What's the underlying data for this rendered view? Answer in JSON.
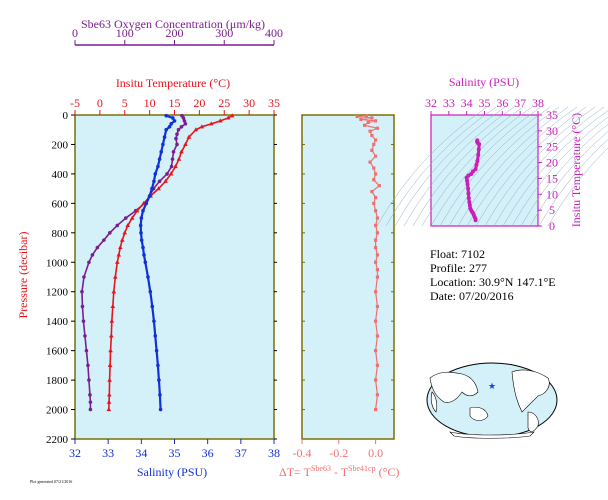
{
  "colors": {
    "oxygen": "#7a1f8f",
    "temperature": "#e8141c",
    "salinity": "#1030d8",
    "salinity_inset": "#c91fb8",
    "delta": "#f07070",
    "panel_bg": "#d4f0f8",
    "panel_frame": "#7a7000"
  },
  "chart_data": [
    {
      "type": "line",
      "panel": "profile",
      "yaxis": {
        "label": "Pressure (decibar)",
        "lim": [
          0,
          2200
        ],
        "ticks": [
          0,
          200,
          400,
          600,
          800,
          1000,
          1200,
          1400,
          1600,
          1800,
          2000,
          2200
        ],
        "reversed": true
      },
      "oxygen_axis": {
        "label": "Sbe63 Oxygen Concentration (μm/kg)",
        "lim": [
          0,
          400
        ],
        "ticks": [
          0,
          100,
          200,
          300,
          400
        ]
      },
      "temperature_axis": {
        "label": "Insitu Temperature (°C)",
        "lim": [
          -5,
          35
        ],
        "ticks": [
          -5,
          0,
          5,
          10,
          15,
          20,
          25,
          30,
          35
        ]
      },
      "salinity_axis": {
        "label": "Salinity (PSU)",
        "lim": [
          32,
          38
        ],
        "ticks": [
          32,
          33,
          34,
          35,
          36,
          37,
          38
        ]
      },
      "series": [
        {
          "key": "oxygen",
          "pressure": [
            5,
            20,
            40,
            60,
            80,
            100,
            130,
            160,
            200,
            250,
            300,
            350,
            400,
            450,
            500,
            550,
            600,
            650,
            700,
            750,
            800,
            850,
            900,
            950,
            1000,
            1100,
            1200,
            1300,
            1400,
            1500,
            1600,
            1700,
            1800,
            1900,
            1950,
            2000
          ],
          "values": [
            215,
            218,
            220,
            222,
            214,
            208,
            205,
            203,
            205,
            198,
            196,
            194,
            185,
            170,
            158,
            150,
            140,
            122,
            102,
            85,
            70,
            58,
            45,
            35,
            28,
            18,
            14,
            15,
            17,
            20,
            23,
            26,
            28,
            30,
            31,
            31
          ]
        },
        {
          "key": "temperature",
          "pressure": [
            5,
            20,
            40,
            60,
            80,
            100,
            150,
            200,
            250,
            300,
            350,
            400,
            450,
            500,
            550,
            600,
            650,
            700,
            750,
            800,
            850,
            900,
            950,
            1000,
            1100,
            1200,
            1300,
            1400,
            1500,
            1600,
            1700,
            1800,
            1900,
            1950,
            2000
          ],
          "values": [
            26.6,
            25.8,
            24.2,
            22.4,
            20.5,
            19.3,
            17.9,
            17.2,
            16.4,
            15.9,
            15.2,
            14.3,
            13.2,
            11.8,
            10.2,
            8.8,
            7.5,
            6.5,
            5.6,
            5.0,
            4.5,
            4.1,
            3.8,
            3.5,
            3.1,
            2.8,
            2.6,
            2.4,
            2.3,
            2.15,
            2.05,
            1.95,
            1.9,
            1.85,
            1.8
          ]
        },
        {
          "key": "salinity",
          "pressure": [
            5,
            20,
            40,
            60,
            80,
            100,
            150,
            200,
            250,
            300,
            350,
            400,
            450,
            500,
            550,
            600,
            650,
            700,
            750,
            800,
            850,
            900,
            950,
            1000,
            1100,
            1200,
            1300,
            1400,
            1500,
            1600,
            1700,
            1800,
            1900,
            2000
          ],
          "values": [
            34.75,
            34.95,
            35.0,
            34.9,
            34.85,
            34.75,
            34.7,
            34.65,
            34.6,
            34.55,
            34.5,
            34.42,
            34.38,
            34.32,
            34.25,
            34.15,
            34.05,
            34.0,
            33.98,
            33.99,
            34.01,
            34.05,
            34.08,
            34.12,
            34.2,
            34.27,
            34.33,
            34.38,
            34.42,
            34.46,
            34.5,
            34.53,
            34.56,
            34.58
          ]
        }
      ]
    },
    {
      "type": "scatter",
      "panel": "delta",
      "xaxis": {
        "label": "ΔT= T",
        "sup1": "Sbe63",
        "mid": " - T",
        "sup2": "Sbe41cp",
        "unit": " (°C)",
        "lim": [
          -0.4,
          0.1
        ],
        "ticks": [
          -0.4,
          -0.2,
          0.0
        ],
        "tick_labels": [
          "-0.4",
          "-0.2",
          "0.0"
        ]
      },
      "pressure": [
        5,
        10,
        20,
        30,
        40,
        50,
        70,
        90,
        110,
        140,
        170,
        200,
        240,
        280,
        320,
        360,
        400,
        440,
        480,
        520,
        560,
        600,
        650,
        700,
        750,
        800,
        850,
        900,
        950,
        1000,
        1050,
        1100,
        1200,
        1300,
        1400,
        1500,
        1600,
        1700,
        1800,
        1900,
        2000
      ],
      "values": [
        -0.05,
        -0.1,
        -0.02,
        -0.08,
        0.0,
        -0.04,
        -0.06,
        0.01,
        -0.03,
        -0.02,
        0.0,
        -0.01,
        -0.02,
        0.0,
        -0.03,
        -0.01,
        0.0,
        -0.01,
        0.02,
        -0.02,
        0.0,
        -0.01,
        0.0,
        0.01,
        0.0,
        0.01,
        0.0,
        0.0,
        0.01,
        0.0,
        0.01,
        0.01,
        0.0,
        0.01,
        0.0,
        0.01,
        0.0,
        0.01,
        0.0,
        0.01,
        0.0
      ]
    },
    {
      "type": "line",
      "panel": "ts",
      "xaxis": {
        "label": "Salinity (PSU)",
        "lim": [
          32,
          38
        ],
        "ticks": [
          32,
          33,
          34,
          35,
          36,
          37,
          38
        ]
      },
      "yaxis": {
        "label": "Insitu Temperature (°C)",
        "lim": [
          0,
          35
        ],
        "ticks": [
          0,
          5,
          10,
          15,
          20,
          25,
          30,
          35
        ]
      },
      "salinity": [
        34.5,
        34.5,
        34.45,
        34.4,
        34.35,
        34.3,
        34.25,
        34.2,
        34.18,
        34.15,
        34.12,
        34.1,
        34.08,
        34.05,
        34.02,
        34.0,
        34.1,
        34.25,
        34.35,
        34.5,
        34.55,
        34.6,
        34.65,
        34.68,
        34.7,
        34.62,
        34.58,
        34.6
      ],
      "temperature": [
        1.8,
        2.2,
        2.8,
        3.5,
        4.1,
        4.5,
        5.0,
        5.6,
        6.5,
        7.5,
        8.8,
        10.2,
        11.8,
        13.2,
        14.3,
        15.2,
        15.9,
        16.4,
        17.2,
        17.9,
        19.3,
        20.5,
        22.4,
        24.2,
        25.8,
        26.2,
        26.6,
        27.0
      ]
    }
  ],
  "info": {
    "float": "Float:  7102",
    "profile": "Profile:  277",
    "location": "Location:  30.9°N  147.1°E",
    "date": "Date:  07/20/2016"
  },
  "footer": "Plot generated 07/21/2016",
  "map": {
    "marker_lat": 30.9,
    "marker_lon": 147.1,
    "marker_color": "#2040e0"
  }
}
